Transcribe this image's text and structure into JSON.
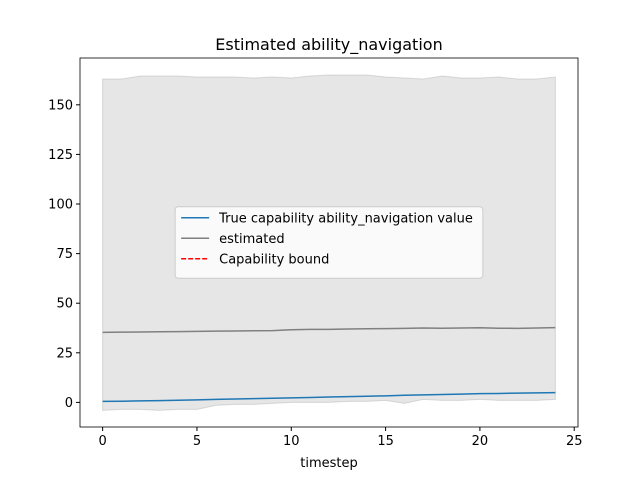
{
  "chart_data": {
    "type": "line",
    "title": "Estimated ability_navigation",
    "xlabel": "timestep",
    "x": [
      0,
      1,
      2,
      3,
      4,
      5,
      6,
      7,
      8,
      9,
      10,
      11,
      12,
      13,
      14,
      15,
      16,
      17,
      18,
      19,
      20,
      21,
      22,
      23,
      24
    ],
    "series": [
      {
        "name": "True capability ability_navigation value",
        "color": "#1f77b4",
        "style": "solid",
        "values": [
          0.5,
          0.6,
          0.8,
          0.9,
          1.1,
          1.3,
          1.5,
          1.7,
          1.9,
          2.1,
          2.3,
          2.5,
          2.7,
          2.9,
          3.1,
          3.3,
          3.6,
          3.8,
          4.0,
          4.2,
          4.4,
          4.5,
          4.7,
          4.8,
          4.9
        ]
      },
      {
        "name": "estimated",
        "color": "#808080",
        "style": "solid",
        "values": [
          35.3,
          35.4,
          35.5,
          35.6,
          35.7,
          35.8,
          35.9,
          36.0,
          36.1,
          36.2,
          36.6,
          36.8,
          36.8,
          37.0,
          37.1,
          37.2,
          37.3,
          37.5,
          37.4,
          37.5,
          37.6,
          37.4,
          37.3,
          37.5,
          37.7
        ]
      },
      {
        "name": "Capability bound",
        "color": "#ff0000",
        "style": "dashed",
        "values": [
          null,
          null,
          null,
          null,
          null,
          null,
          null,
          null,
          null,
          null,
          null,
          null,
          null,
          null,
          null,
          null,
          null,
          null,
          null,
          null,
          null,
          null,
          null,
          null,
          null
        ]
      }
    ],
    "band": {
      "color": "#808080",
      "upper": [
        163,
        163,
        164.5,
        164.5,
        164.5,
        164,
        164,
        164,
        163.5,
        164,
        163.5,
        164.5,
        165,
        165,
        165,
        164,
        163.5,
        163,
        164.5,
        163.5,
        163.5,
        164,
        163,
        163,
        164
      ],
      "lower": [
        -4,
        -3.5,
        -3.5,
        -4,
        -3.5,
        -3.5,
        -1.5,
        -1,
        -1,
        -0.5,
        0,
        0,
        0,
        0.5,
        0.5,
        1,
        -0.5,
        1.5,
        1,
        1,
        1.5,
        1,
        1,
        1,
        1.5
      ]
    },
    "xlim": [
      -1.2,
      25.2
    ],
    "xticks": [
      0,
      5,
      10,
      15,
      20,
      25
    ],
    "ylim": [
      -12.4,
      173.6
    ],
    "yticks": [
      0,
      25,
      50,
      75,
      100,
      125,
      150
    ],
    "legend": "center"
  }
}
